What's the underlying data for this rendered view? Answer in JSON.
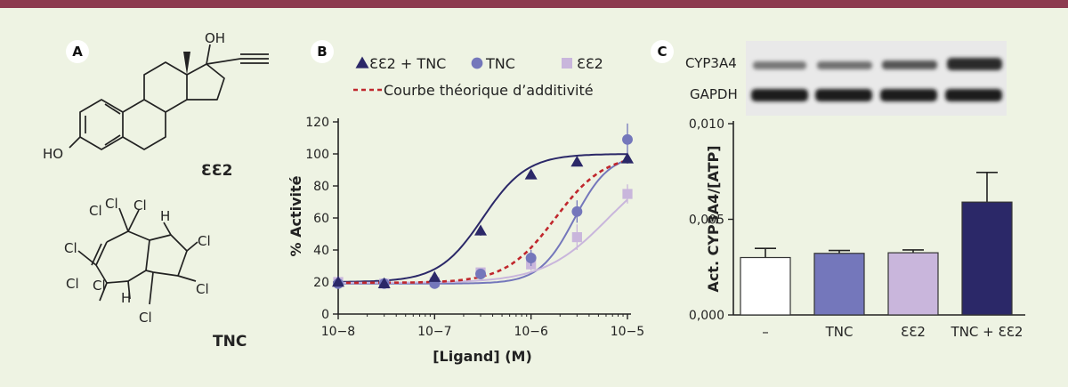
{
  "panels": {
    "a": "A",
    "b": "B",
    "c": "C"
  },
  "molecules": {
    "ee2": "ƐƐ2",
    "tnc": "TNC"
  },
  "blot": {
    "top_band": "CYP3A4",
    "bottom_band": "GAPDH"
  },
  "colors": {
    "frame": "#8c3a4f",
    "background": "#eef3e3",
    "ee2_tnc": "#2b2868",
    "tnc": "#7477bb",
    "ee2": "#c9b6dc",
    "theory": "#c0272d"
  },
  "chart_data": [
    {
      "type": "scatter",
      "title": "",
      "xlabel": "[Ligand] (M)",
      "ylabel": "% Activité",
      "xscale": "log",
      "xlim": [
        1e-08,
        1e-05
      ],
      "ylim": [
        0,
        120
      ],
      "x_ticks": [
        "10−8",
        "10−7",
        "10−6",
        "10−5"
      ],
      "y_ticks": [
        "0",
        "20",
        "40",
        "60",
        "80",
        "100",
        "120"
      ],
      "legend": [
        "ƐƐ2 + TNC",
        "TNC",
        "ƐƐ2",
        "Courbe théorique d’additivité"
      ],
      "series": [
        {
          "name": "ƐƐ2 + TNC",
          "marker": "triangle",
          "x": [
            1e-08,
            3e-08,
            1e-07,
            3e-07,
            1e-06,
            3e-06,
            1e-05
          ],
          "y": [
            20,
            19,
            23,
            52,
            87,
            95,
            97
          ],
          "err": [
            2,
            2,
            2,
            3,
            2,
            2,
            3
          ]
        },
        {
          "name": "TNC",
          "marker": "circle",
          "x": [
            1e-08,
            3e-08,
            1e-07,
            3e-07,
            1e-06,
            3e-06,
            1e-05
          ],
          "y": [
            19,
            19,
            19,
            25,
            35,
            64,
            109
          ],
          "err": [
            2,
            2,
            2,
            3,
            5,
            7,
            10
          ]
        },
        {
          "name": "ƐƐ2",
          "marker": "square",
          "x": [
            1e-08,
            3e-08,
            1e-07,
            3e-07,
            1e-06,
            3e-06,
            1e-05
          ],
          "y": [
            20,
            19,
            20,
            26,
            31,
            48,
            75
          ],
          "err": [
            2,
            2,
            2,
            3,
            4,
            8,
            6
          ]
        }
      ],
      "fits": [
        {
          "name": "ƐƐ2 + TNC",
          "bottom": 20,
          "top": 100,
          "log_ec50": -6.5,
          "hill": 1.9
        },
        {
          "name": "TNC",
          "bottom": 19,
          "top": 100,
          "log_ec50": -5.55,
          "hill": 2.4
        },
        {
          "name": "ƐƐ2",
          "bottom": 19.5,
          "top": 100,
          "log_ec50": -5.2,
          "hill": 1.3
        },
        {
          "name": "Courbe théorique d’additivité",
          "bottom": 19.5,
          "top": 100,
          "log_ec50": -5.75,
          "hill": 1.7,
          "dashed": true
        }
      ]
    },
    {
      "type": "bar",
      "title": "",
      "xlabel": "",
      "ylabel": "Act. CYP3A4/[ATP]",
      "ylim": [
        0,
        0.01
      ],
      "y_ticks": [
        "0,000",
        "0,005",
        "0,010"
      ],
      "categories": [
        "–",
        "TNC",
        "ƐƐ2",
        "TNC + ƐƐ2"
      ],
      "values": [
        0.003,
        0.00322,
        0.00325,
        0.0059
      ],
      "errors": [
        0.00048,
        0.00015,
        0.00015,
        0.00155
      ]
    }
  ]
}
